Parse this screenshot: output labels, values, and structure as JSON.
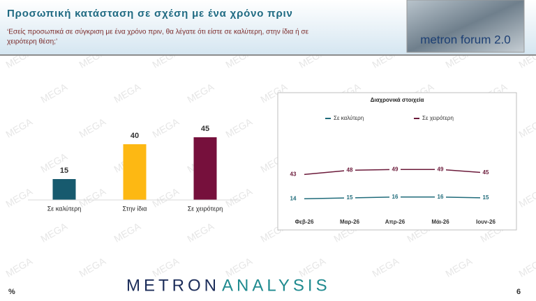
{
  "header": {
    "title": "Προσωπική κατάσταση σε σχέση με ένα χρόνο πριν",
    "subtitle_lines": [
      "‘Εσείς προσωπικά σε σύγκριση με ένα χρόνο πριν, θα λέγατε ότι είστε σε καλύτερη, στην ίδια ή σε",
      "χειρότερη θέση;’"
    ],
    "logo": "metron forum 2.0"
  },
  "watermark": "MEGA",
  "chart_data": [
    {
      "type": "bar",
      "categories": [
        "Σε καλύτερη",
        "Στην ίδια",
        "Σε χειρότερη"
      ],
      "values": [
        15,
        40,
        45
      ],
      "colors": [
        "#175a6e",
        "#fdb813",
        "#76103c"
      ]
    },
    {
      "type": "line",
      "title": "Διαχρονικά στοιχεία",
      "categories": [
        "Φεβ-26",
        "Μαρ-26",
        "Απρ-26",
        "Μάι-26",
        "Ιουν-26"
      ],
      "series": [
        {
          "name": "Σε καλύτερη",
          "color": "#1f6b7a",
          "values": [
            14,
            15,
            16,
            16,
            15
          ]
        },
        {
          "name": "Σε χειρότερη",
          "color": "#6b1a3a",
          "values": [
            43,
            48,
            49,
            49,
            45
          ]
        }
      ]
    }
  ],
  "footer": {
    "brand_1": "METRON",
    "brand_2": "ANALYSIS",
    "unit": "%",
    "page": "6"
  }
}
